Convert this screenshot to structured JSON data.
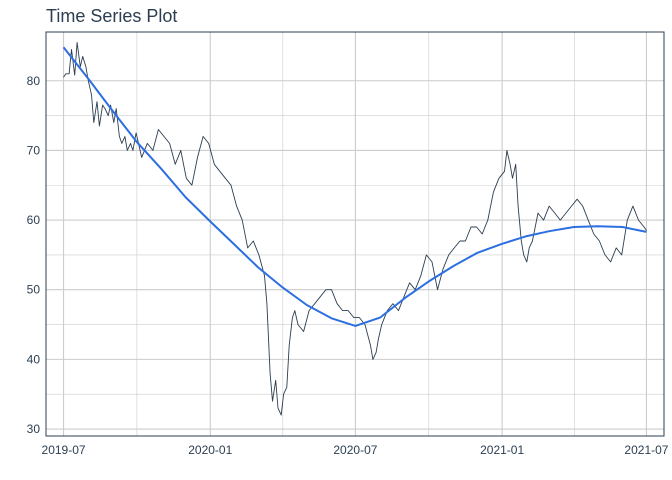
{
  "chart_data": {
    "type": "line",
    "title": "Time Series Plot",
    "xlabel": "",
    "ylabel": "",
    "x_ticks": [
      {
        "label": "2019-07",
        "date": "2019-07-01"
      },
      {
        "label": "2020-01",
        "date": "2020-01-01"
      },
      {
        "label": "2020-07",
        "date": "2020-07-01"
      },
      {
        "label": "2021-01",
        "date": "2021-01-01"
      },
      {
        "label": "2021-07",
        "date": "2021-07-01"
      }
    ],
    "y_ticks": [
      30,
      40,
      50,
      60,
      70,
      80
    ],
    "xlim": [
      "2019-06-09",
      "2021-07-23"
    ],
    "ylim": [
      29,
      87
    ],
    "grid": true,
    "legend": "none",
    "colors": {
      "series": "#2c3e50",
      "smooth": "#2c6fe0",
      "grid": "#cccccc",
      "border": "#2c3e50"
    },
    "series": [
      {
        "x": [
          "2019-07-01",
          "2019-07-04",
          "2019-07-08",
          "2019-07-11",
          "2019-07-15",
          "2019-07-18",
          "2019-07-22",
          "2019-07-25",
          "2019-07-29",
          "2019-08-01",
          "2019-08-05",
          "2019-08-08",
          "2019-08-12",
          "2019-08-15",
          "2019-08-19",
          "2019-08-22",
          "2019-08-26",
          "2019-08-29",
          "2019-09-02",
          "2019-09-05",
          "2019-09-09",
          "2019-09-12",
          "2019-09-16",
          "2019-09-19",
          "2019-09-23",
          "2019-09-26",
          "2019-09-30",
          "2019-10-07",
          "2019-10-14",
          "2019-10-21",
          "2019-10-28",
          "2019-11-04",
          "2019-11-11",
          "2019-11-18",
          "2019-11-25",
          "2019-12-02",
          "2019-12-09",
          "2019-12-16",
          "2019-12-23",
          "2019-12-30",
          "2020-01-06",
          "2020-01-13",
          "2020-01-20",
          "2020-01-27",
          "2020-02-03",
          "2020-02-10",
          "2020-02-17",
          "2020-02-24",
          "2020-03-02",
          "2020-03-09",
          "2020-03-12",
          "2020-03-16",
          "2020-03-19",
          "2020-03-23",
          "2020-03-26",
          "2020-03-30",
          "2020-04-02",
          "2020-04-06",
          "2020-04-09",
          "2020-04-13",
          "2020-04-16",
          "2020-04-20",
          "2020-04-27",
          "2020-05-04",
          "2020-05-11",
          "2020-05-18",
          "2020-05-25",
          "2020-06-01",
          "2020-06-08",
          "2020-06-15",
          "2020-06-22",
          "2020-06-29",
          "2020-07-06",
          "2020-07-13",
          "2020-07-20",
          "2020-07-23",
          "2020-07-27",
          "2020-07-30",
          "2020-08-03",
          "2020-08-10",
          "2020-08-17",
          "2020-08-24",
          "2020-08-31",
          "2020-09-07",
          "2020-09-14",
          "2020-09-21",
          "2020-09-28",
          "2020-10-05",
          "2020-10-12",
          "2020-10-19",
          "2020-10-26",
          "2020-11-02",
          "2020-11-09",
          "2020-11-16",
          "2020-11-23",
          "2020-11-30",
          "2020-12-07",
          "2020-12-14",
          "2020-12-21",
          "2020-12-28",
          "2021-01-04",
          "2021-01-07",
          "2021-01-11",
          "2021-01-14",
          "2021-01-18",
          "2021-01-21",
          "2021-01-25",
          "2021-01-28",
          "2021-02-01",
          "2021-02-04",
          "2021-02-08",
          "2021-02-15",
          "2021-02-22",
          "2021-03-01",
          "2021-03-08",
          "2021-03-15",
          "2021-03-22",
          "2021-03-29",
          "2021-04-05",
          "2021-04-12",
          "2021-04-19",
          "2021-04-26",
          "2021-05-03",
          "2021-05-10",
          "2021-05-17",
          "2021-05-24",
          "2021-05-31",
          "2021-06-07",
          "2021-06-14",
          "2021-06-21",
          "2021-06-28",
          "2021-07-01"
        ],
        "y": [
          80.5,
          81,
          81,
          84.5,
          80.8,
          85.5,
          82,
          83.5,
          82,
          80,
          78,
          74,
          77,
          73.5,
          76.5,
          76,
          75,
          76.5,
          74,
          76,
          72,
          71,
          72,
          70,
          71,
          70,
          72.5,
          69,
          71,
          70,
          73,
          72,
          71,
          68,
          70,
          66,
          65,
          69,
          72,
          71,
          68,
          67,
          66,
          65,
          62,
          60,
          56,
          57,
          55,
          52,
          48,
          38,
          34,
          37,
          33,
          32,
          35,
          36,
          42,
          46,
          47,
          45,
          44,
          47,
          48,
          49,
          50,
          50,
          48,
          47,
          47,
          46,
          46,
          45,
          42,
          40,
          41,
          43,
          45,
          47,
          48,
          47,
          49,
          51,
          50,
          52,
          55,
          54,
          50,
          53,
          55,
          56,
          57,
          57,
          59,
          59,
          58,
          60,
          64,
          66,
          67,
          70,
          68,
          66,
          68,
          62,
          57,
          55,
          54,
          56,
          57,
          61,
          60,
          62,
          61,
          60,
          61,
          62,
          63,
          62,
          60,
          58,
          57,
          55,
          54,
          56,
          55,
          60,
          62,
          60,
          59,
          58.5
        ]
      },
      {
        "x": [
          "2019-07-01",
          "2019-08-01",
          "2019-09-01",
          "2019-10-01",
          "2019-11-01",
          "2019-12-01",
          "2020-01-01",
          "2020-02-01",
          "2020-03-01",
          "2020-04-01",
          "2020-05-01",
          "2020-06-01",
          "2020-07-01",
          "2020-08-01",
          "2020-09-01",
          "2020-10-01",
          "2020-11-01",
          "2020-12-01",
          "2021-01-01",
          "2021-02-01",
          "2021-03-01",
          "2021-04-01",
          "2021-05-01",
          "2021-06-01",
          "2021-07-01"
        ],
        "y": [
          84.8,
          80.3,
          75.6,
          71.2,
          67.3,
          63.3,
          59.8,
          56.4,
          53.2,
          50.3,
          47.8,
          45.9,
          44.8,
          46.0,
          48.8,
          51.2,
          53.4,
          55.3,
          56.6,
          57.7,
          58.4,
          59.0,
          59.1,
          59.0,
          58.3
        ]
      }
    ]
  }
}
